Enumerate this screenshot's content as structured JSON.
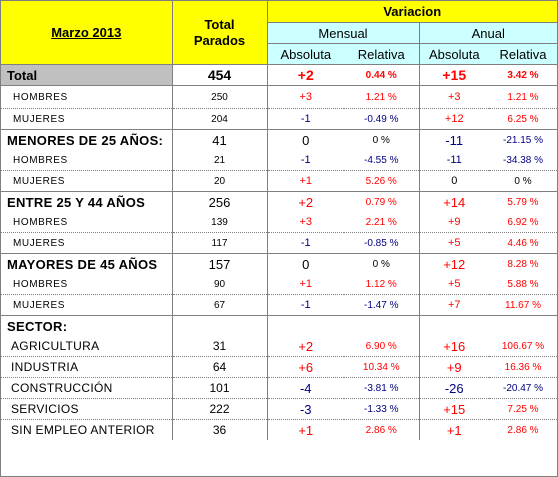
{
  "header": {
    "date": "Marzo 2013",
    "total_line1": "Total",
    "total_line2": "Parados",
    "variacion": "Variacion",
    "mensual": "Mensual",
    "anual": "Anual",
    "m_abs": "Absoluta",
    "m_rel": "Relativa",
    "a_abs": "Absoluta",
    "a_rel": "Relativa"
  },
  "colors": {
    "header_yellow": "#ffff00",
    "header_cyan": "#ccffff",
    "grey": "#c0c0c0",
    "positive": "#ff0000",
    "negative": "#000080"
  },
  "total": {
    "label": "Total",
    "total": "454",
    "m_abs": "+2",
    "m_rel": "0.44 %",
    "a_abs": "+15",
    "a_rel": "3.42 %"
  },
  "rows": {
    "hombres": {
      "label": "HOMBRES",
      "total": "250",
      "m_abs": "+3",
      "m_rel": "1.21 %",
      "a_abs": "+3",
      "a_rel": "1.21 %"
    },
    "mujeres": {
      "label": "MUJERES",
      "total": "204",
      "m_abs": "-1",
      "m_rel": "-0.49 %",
      "a_abs": "+12",
      "a_rel": "6.25 %"
    },
    "menores": {
      "label": "MENORES DE 25 AÑOS:",
      "total": "41",
      "m_abs": "0",
      "m_rel": "0 %",
      "a_abs": "-11",
      "a_rel": "-21.15 %"
    },
    "menores_h": {
      "label": "HOMBRES",
      "total": "21",
      "m_abs": "-1",
      "m_rel": "-4.55 %",
      "a_abs": "-11",
      "a_rel": "-34.38 %"
    },
    "menores_m": {
      "label": "MUJERES",
      "total": "20",
      "m_abs": "+1",
      "m_rel": "5.26 %",
      "a_abs": "0",
      "a_rel": "0 %"
    },
    "entre": {
      "label": "ENTRE 25 Y 44 AÑOS",
      "total": "256",
      "m_abs": "+2",
      "m_rel": "0.79 %",
      "a_abs": "+14",
      "a_rel": "5.79 %"
    },
    "entre_h": {
      "label": "HOMBRES",
      "total": "139",
      "m_abs": "+3",
      "m_rel": "2.21 %",
      "a_abs": "+9",
      "a_rel": "6.92 %"
    },
    "entre_m": {
      "label": "MUJERES",
      "total": "117",
      "m_abs": "-1",
      "m_rel": "-0.85 %",
      "a_abs": "+5",
      "a_rel": "4.46 %"
    },
    "mayores": {
      "label": "MAYORES DE 45 AÑOS",
      "total": "157",
      "m_abs": "0",
      "m_rel": "0 %",
      "a_abs": "+12",
      "a_rel": "8.28 %"
    },
    "mayores_h": {
      "label": "HOMBRES",
      "total": "90",
      "m_abs": "+1",
      "m_rel": "1.12 %",
      "a_abs": "+5",
      "a_rel": "5.88 %"
    },
    "mayores_m": {
      "label": "MUJERES",
      "total": "67",
      "m_abs": "-1",
      "m_rel": "-1.47 %",
      "a_abs": "+7",
      "a_rel": "11.67 %"
    },
    "sector": {
      "label": "SECTOR:"
    },
    "agri": {
      "label": "AGRICULTURA",
      "total": "31",
      "m_abs": "+2",
      "m_rel": "6.90 %",
      "a_abs": "+16",
      "a_rel": "106.67 %"
    },
    "indu": {
      "label": "INDUSTRIA",
      "total": "64",
      "m_abs": "+6",
      "m_rel": "10.34 %",
      "a_abs": "+9",
      "a_rel": "16.36 %"
    },
    "cons": {
      "label": "CONSTRUCCIÓN",
      "total": "101",
      "m_abs": "-4",
      "m_rel": "-3.81 %",
      "a_abs": "-26",
      "a_rel": "-20.47 %"
    },
    "serv": {
      "label": "SERVICIOS",
      "total": "222",
      "m_abs": "-3",
      "m_rel": "-1.33 %",
      "a_abs": "+15",
      "a_rel": "7.25 %"
    },
    "sinemp": {
      "label": "SIN EMPLEO ANTERIOR",
      "total": "36",
      "m_abs": "+1",
      "m_rel": "2.86 %",
      "a_abs": "+1",
      "a_rel": "2.86 %"
    }
  }
}
